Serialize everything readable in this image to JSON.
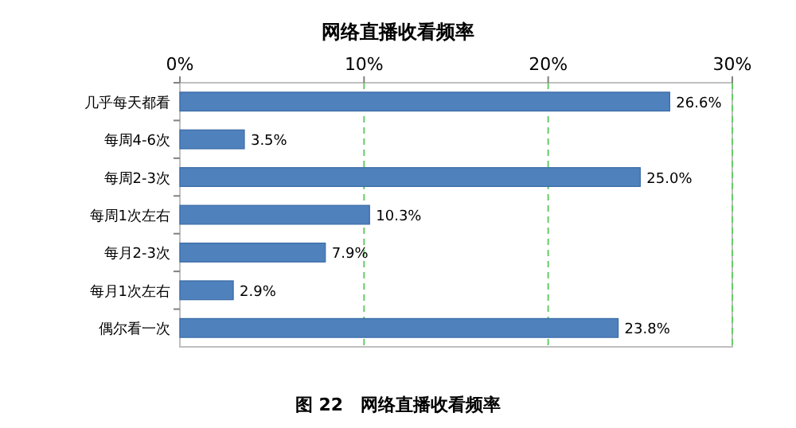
{
  "chart_data": {
    "type": "bar",
    "orientation": "horizontal",
    "title": "网络直播收看频率",
    "categories": [
      "几乎每天都看",
      "每周4-6次",
      "每周2-3次",
      "每周1次左右",
      "每月2-3次",
      "每月1次左右",
      "偶尔看一次"
    ],
    "values": [
      26.6,
      3.5,
      25.0,
      10.3,
      7.9,
      2.9,
      23.8
    ],
    "value_labels": [
      "26.6%",
      "3.5%",
      "25.0%",
      "10.3%",
      "7.9%",
      "2.9%",
      "23.8%"
    ],
    "color": "#4f81bd",
    "xlim": [
      0,
      30
    ],
    "xticks": [
      {
        "value": 0,
        "label": "0%"
      },
      {
        "value": 10,
        "label": "10%"
      },
      {
        "value": 20,
        "label": "20%"
      },
      {
        "value": 30,
        "label": "30%"
      }
    ],
    "grid": "x",
    "annotations": [
      "图 22　网络直播收看频率"
    ]
  }
}
